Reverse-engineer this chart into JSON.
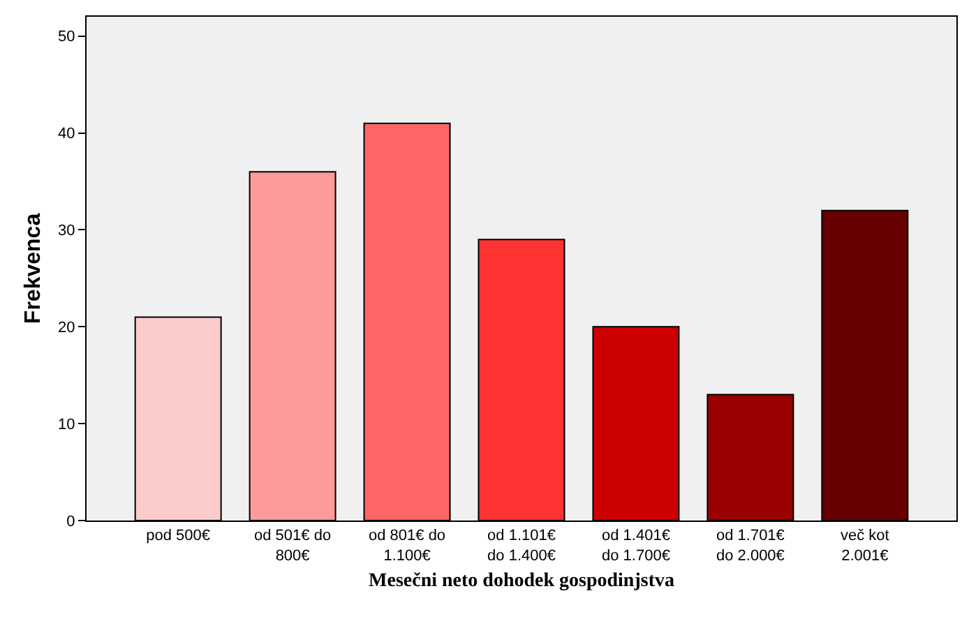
{
  "chart_data": {
    "type": "bar",
    "xlabel": "Mesečni neto dohodek gospodinjstva",
    "ylabel": "Frekvenca",
    "categories": [
      "pod 500€",
      "od 501€ do\n800€",
      "od 801€ do\n1.100€",
      "od 1.101€\ndo 1.400€",
      "od 1.401€\ndo 1.700€",
      "od 1.701€\ndo 2.000€",
      "več kot\n2.001€"
    ],
    "values": [
      21,
      36,
      41,
      29,
      20,
      13,
      32
    ],
    "colors": [
      "#fccccc",
      "#fd9a9a",
      "#fe6666",
      "#fe3333",
      "#cc0000",
      "#990000",
      "#660000"
    ],
    "ylim": [
      0,
      52
    ],
    "yticks": [
      0,
      10,
      20,
      30,
      40,
      50
    ]
  }
}
